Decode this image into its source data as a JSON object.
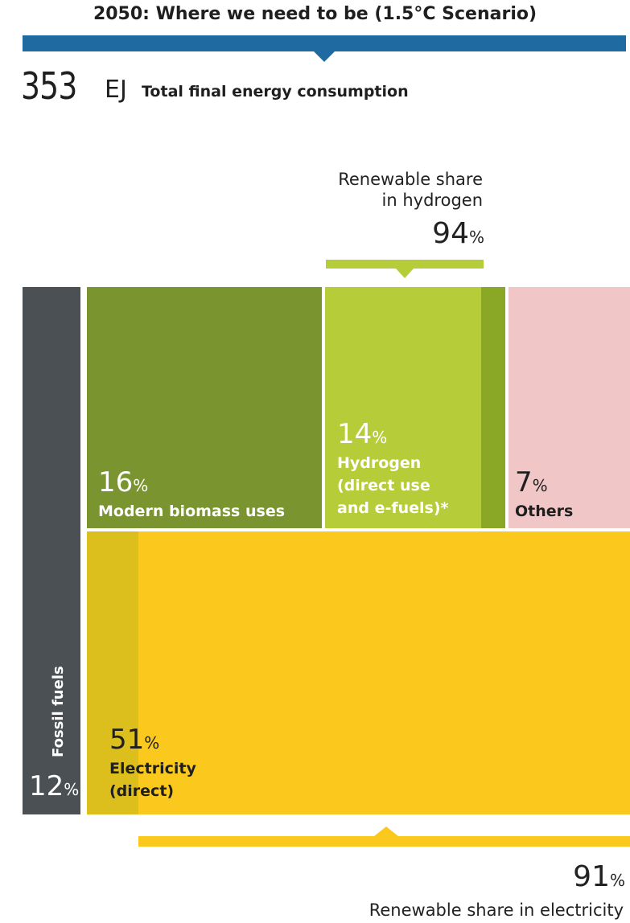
{
  "title": "2050: Where we need to be (1.5°C Scenario)",
  "total": {
    "value": "353",
    "unit": "EJ",
    "label": "Total final energy consumption"
  },
  "hydrogen_share": {
    "label_line1": "Renewable share",
    "label_line2": "in hydrogen",
    "value": "94",
    "unit": "%"
  },
  "electricity_share": {
    "value": "91",
    "unit": "%",
    "label": "Renewable share in electricity"
  },
  "colors": {
    "accent_blue": "#1f6aa1",
    "fossil": "#4a5053",
    "biomass": "#7a942f",
    "hydrogen": "#b6cc39",
    "hydrogen_nonrenewable": "#8aa826",
    "others": "#f0c6c6",
    "electricity": "#fbc81d",
    "electricity_nonrenewable": "#dcbf1c",
    "hydrogen_bracket": "#b6cc39",
    "electricity_bracket": "#fbc81d"
  },
  "chart_data": {
    "type": "treemap",
    "title": "2050: Where we need to be (1.5°C Scenario)",
    "total_final_energy_consumption_EJ": 353,
    "segments": [
      {
        "name": "Fossil fuels",
        "share_pct": 12,
        "label": "12",
        "unit": "%"
      },
      {
        "name": "Modern biomass uses",
        "share_pct": 16,
        "label": "16",
        "unit": "%"
      },
      {
        "name_line1": "Hydrogen",
        "name_line2": "(direct use",
        "name_line3": "and e-fuels)*",
        "share_pct": 14,
        "label": "14",
        "unit": "%",
        "renewable_share_pct": 94
      },
      {
        "name": "Others",
        "share_pct": 7,
        "label": "7",
        "unit": "%"
      },
      {
        "name_line1": "Electricity",
        "name_line2": "(direct)",
        "share_pct": 51,
        "label": "51",
        "unit": "%",
        "renewable_share_pct": 91
      }
    ]
  }
}
